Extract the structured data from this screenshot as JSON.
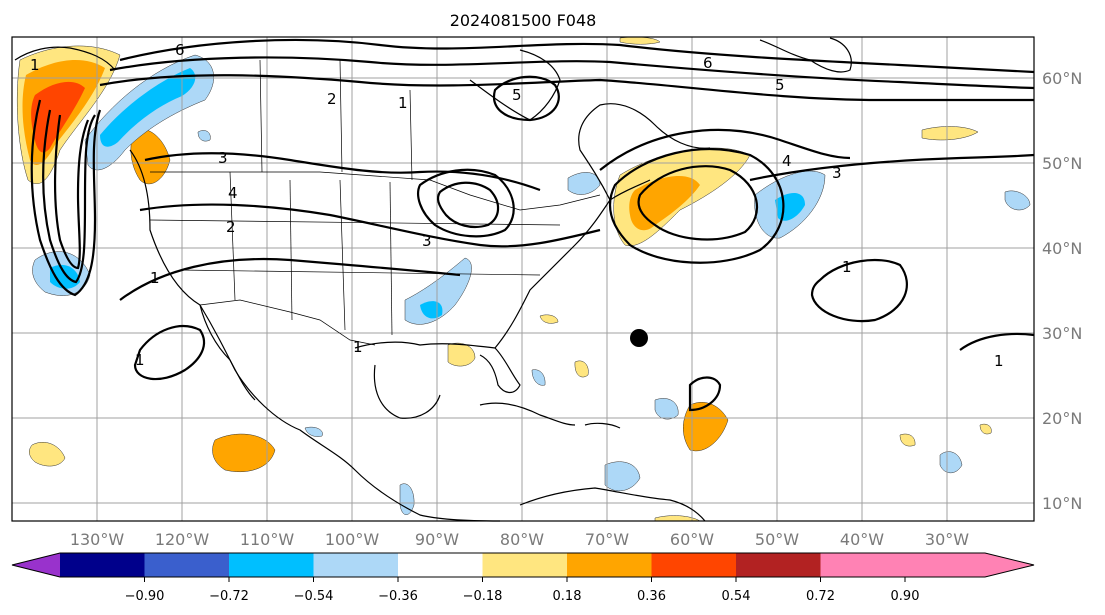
{
  "title": "2024081500 F048",
  "map": {
    "longitude_labels": [
      "130°W",
      "120°W",
      "110°W",
      "100°W",
      "90°W",
      "80°W",
      "70°W",
      "60°W",
      "50°W",
      "40°W",
      "30°W"
    ],
    "latitude_labels": [
      "60°N",
      "50°N",
      "40°N",
      "30°N",
      "20°N",
      "10°N"
    ],
    "contour_labels": [
      "6",
      "5",
      "4",
      "3",
      "2",
      "1"
    ],
    "marker": {
      "lon": "66°W",
      "lat": "29.5°N",
      "color": "#000000"
    }
  },
  "colorbar": {
    "tick_labels": [
      "−0.90",
      "−0.72",
      "−0.54",
      "−0.36",
      "−0.18",
      "0.18",
      "0.36",
      "0.54",
      "0.72",
      "0.90"
    ],
    "colors": [
      "#9932cc",
      "#00008b",
      "#3a5fcd",
      "#00bfff",
      "#add8f7",
      "#ffffff",
      "#ffe680",
      "#ffa500",
      "#ff4500",
      "#b22222",
      "#ff82b4"
    ]
  }
}
